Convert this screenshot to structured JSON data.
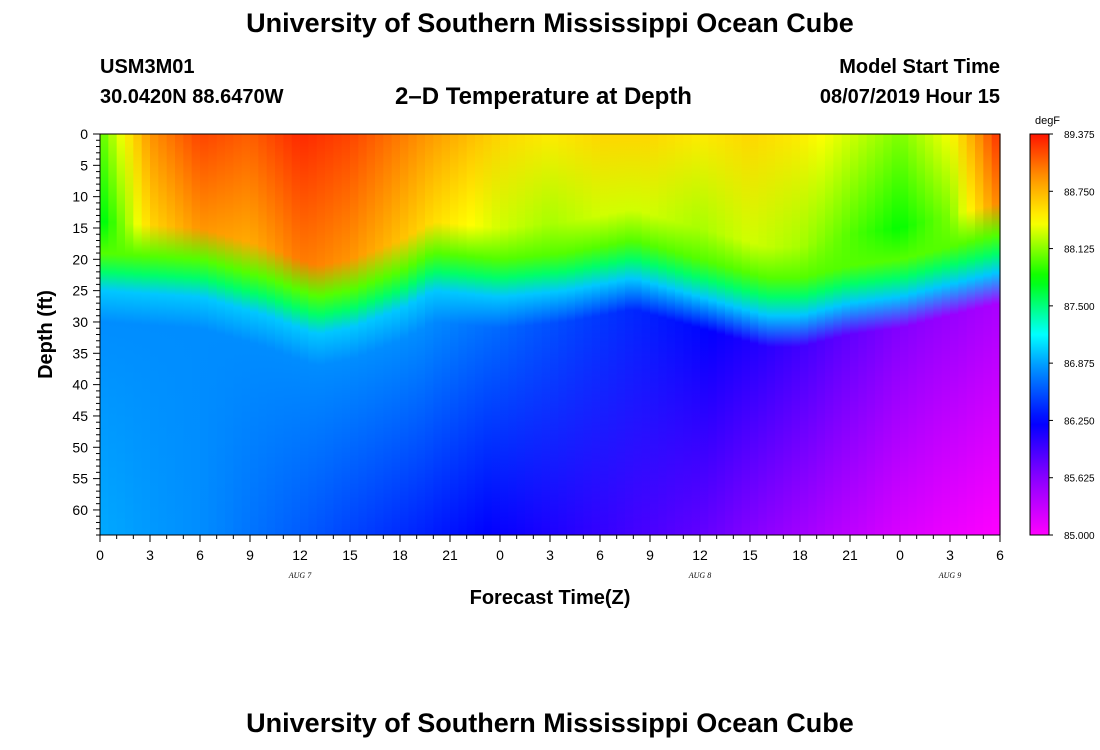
{
  "header": {
    "title": "University of Southern Mississippi Ocean Cube",
    "station_id": "USM3M01",
    "station_location": "30.0420N 88.6470W",
    "model_start_label": "Model Start Time",
    "model_start_value": "08/07/2019 Hour 15"
  },
  "footer": {
    "title": "University of Southern Mississippi Ocean Cube"
  },
  "chart_data": {
    "type": "heatmap",
    "title": "2–D Temperature at Depth",
    "xlabel": "Forecast Time(Z)",
    "ylabel": "Depth (ft)",
    "x_tick_labels": [
      "0",
      "3",
      "6",
      "9",
      "12",
      "15",
      "18",
      "21",
      "0",
      "3",
      "6",
      "9",
      "12",
      "15",
      "18",
      "21",
      "0",
      "3",
      "6"
    ],
    "day_labels": [
      {
        "label": "AUG 7",
        "hour": 12
      },
      {
        "label": "AUG 8",
        "hour": 36
      },
      {
        "label": "AUG 9",
        "hour": 51
      }
    ],
    "xlim": [
      0,
      54
    ],
    "ylim": [
      0,
      64
    ],
    "y_ticks": [
      0,
      5,
      10,
      15,
      20,
      25,
      30,
      35,
      40,
      45,
      50,
      55,
      60
    ],
    "colorbar": {
      "units": "degF",
      "min": 85.0,
      "max": 89.375,
      "tick_labels": [
        "89.375",
        "88.750",
        "88.125",
        "87.500",
        "86.875",
        "86.250",
        "85.625",
        "85.000"
      ]
    },
    "thermocline_depth_ft": {
      "hours": [
        0,
        6,
        10,
        13,
        15,
        18,
        20,
        24,
        28,
        32,
        36,
        40,
        42,
        45,
        48,
        51,
        54
      ],
      "depths": [
        22,
        23,
        26,
        29,
        28,
        25,
        22,
        23,
        22,
        20,
        23,
        26,
        26,
        24,
        23,
        21,
        19
      ]
    },
    "surface_temp_degF": {
      "hours": [
        0,
        3,
        6,
        9,
        12,
        15,
        18,
        21,
        24,
        27,
        30,
        33,
        36,
        39,
        42,
        45,
        48,
        51,
        54
      ],
      "values": [
        88.0,
        88.9,
        89.2,
        89.1,
        89.3,
        89.2,
        89.0,
        88.8,
        88.6,
        88.5,
        88.6,
        88.6,
        88.5,
        88.6,
        88.5,
        88.3,
        88.1,
        88.4,
        89.3
      ]
    },
    "bottom_temp_degF": {
      "hours": [
        0,
        6,
        12,
        18,
        24,
        30,
        36,
        42,
        48,
        54
      ],
      "values": [
        86.9,
        86.8,
        86.6,
        86.4,
        86.2,
        86.0,
        85.8,
        85.5,
        85.2,
        85.0
      ]
    }
  }
}
